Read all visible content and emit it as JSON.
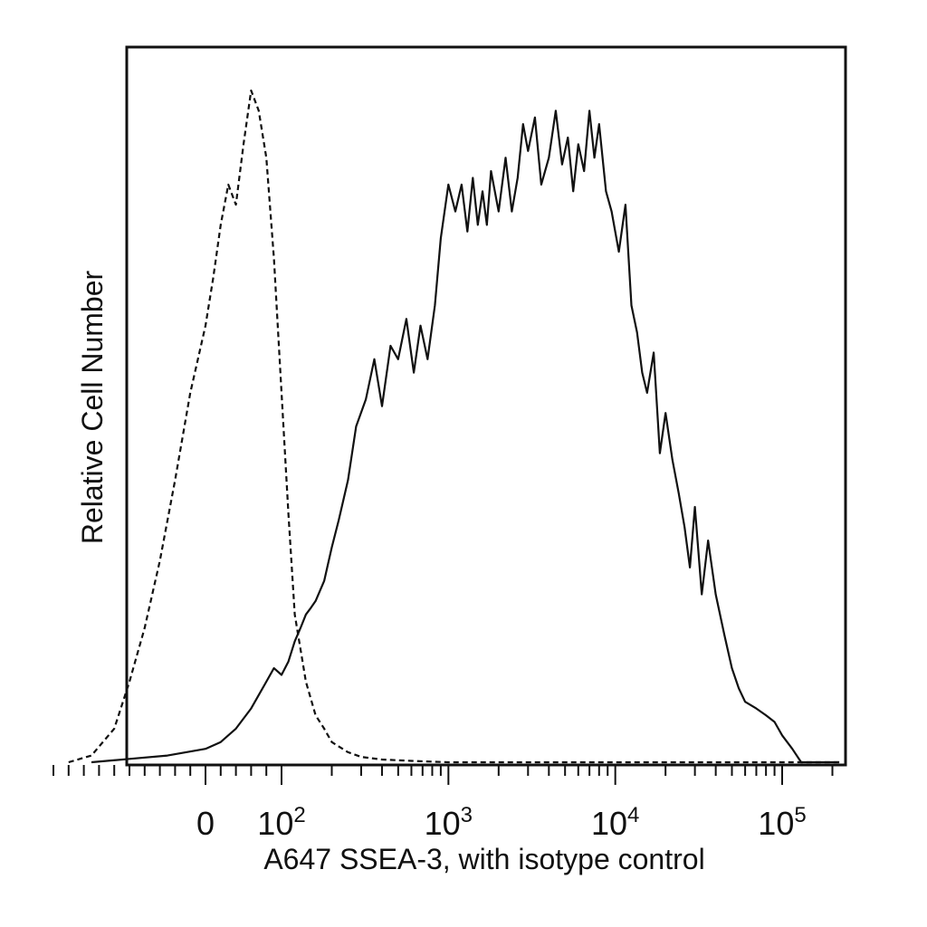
{
  "chart_data": {
    "type": "line",
    "title": "",
    "xlabel": "A647 SSEA-3, with isotype control",
    "ylabel": "Relative Cell Number",
    "x_scale": "biexponential (linear near 0, log above ~10^2)",
    "xlim": [
      -200,
      250000
    ],
    "ylim": [
      0,
      1.0
    ],
    "grid": false,
    "legend": "none",
    "y_ticks_shown": false,
    "x_tick_labels": [
      {
        "value": 0,
        "base": "0",
        "exp": ""
      },
      {
        "value": 100,
        "base": "10",
        "exp": "2"
      },
      {
        "value": 1000,
        "base": "10",
        "exp": "3"
      },
      {
        "value": 10000,
        "base": "10",
        "exp": "4"
      },
      {
        "value": 100000,
        "base": "10",
        "exp": "5"
      }
    ],
    "series": [
      {
        "style": "solid",
        "x": [
          -150,
          -100,
          -50,
          0,
          20,
          40,
          60,
          80,
          90,
          100,
          110,
          120,
          130,
          140,
          150,
          160,
          180,
          200,
          220,
          250,
          280,
          320,
          360,
          400,
          450,
          500,
          560,
          620,
          680,
          750,
          830,
          900,
          1000,
          1100,
          1200,
          1300,
          1400,
          1500,
          1600,
          1700,
          1800,
          2000,
          2200,
          2400,
          2600,
          2800,
          3000,
          3300,
          3600,
          4000,
          4400,
          4800,
          5200,
          5600,
          6000,
          6500,
          7000,
          7500,
          8000,
          8800,
          9500,
          10500,
          11500,
          12500,
          13500,
          14500,
          15500,
          17000,
          18500,
          20000,
          22000,
          24000,
          26000,
          28000,
          30000,
          33000,
          36000,
          40000,
          45000,
          50000,
          55000,
          60000,
          70000,
          80000,
          90000,
          100000,
          115000,
          130000,
          150000,
          180000,
          220000
        ],
        "y": [
          0.0,
          0.005,
          0.01,
          0.02,
          0.03,
          0.05,
          0.08,
          0.12,
          0.14,
          0.13,
          0.15,
          0.18,
          0.2,
          0.22,
          0.23,
          0.24,
          0.27,
          0.32,
          0.36,
          0.42,
          0.5,
          0.54,
          0.6,
          0.53,
          0.62,
          0.6,
          0.66,
          0.58,
          0.65,
          0.6,
          0.68,
          0.78,
          0.86,
          0.82,
          0.86,
          0.79,
          0.87,
          0.8,
          0.85,
          0.8,
          0.88,
          0.82,
          0.9,
          0.82,
          0.87,
          0.95,
          0.91,
          0.96,
          0.86,
          0.9,
          0.97,
          0.89,
          0.93,
          0.85,
          0.92,
          0.88,
          0.97,
          0.9,
          0.95,
          0.85,
          0.82,
          0.76,
          0.83,
          0.68,
          0.64,
          0.58,
          0.55,
          0.61,
          0.46,
          0.52,
          0.45,
          0.4,
          0.35,
          0.29,
          0.38,
          0.25,
          0.33,
          0.25,
          0.19,
          0.14,
          0.11,
          0.09,
          0.08,
          0.07,
          0.06,
          0.04,
          0.02,
          0.0,
          0.0,
          0.0,
          0.0
        ]
      },
      {
        "style": "dashed",
        "x": [
          -180,
          -150,
          -120,
          -100,
          -80,
          -60,
          -40,
          -20,
          0,
          10,
          20,
          30,
          40,
          50,
          60,
          70,
          80,
          90,
          100,
          110,
          120,
          140,
          160,
          180,
          200,
          250,
          300,
          400,
          600,
          1000,
          3000,
          10000,
          100000,
          220000
        ],
        "y": [
          0.0,
          0.01,
          0.05,
          0.12,
          0.2,
          0.3,
          0.42,
          0.55,
          0.65,
          0.72,
          0.8,
          0.86,
          0.83,
          0.92,
          1.0,
          0.97,
          0.9,
          0.75,
          0.55,
          0.37,
          0.22,
          0.12,
          0.07,
          0.05,
          0.03,
          0.015,
          0.008,
          0.004,
          0.002,
          0.0,
          0.0,
          0.0,
          0.0,
          0.0
        ]
      }
    ]
  }
}
